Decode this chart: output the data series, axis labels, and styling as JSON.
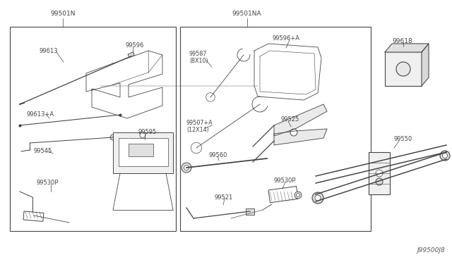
{
  "bg_color": "#ffffff",
  "line_color": "#444444",
  "fig_width": 6.4,
  "fig_height": 3.72,
  "dpi": 100,
  "watermark": "J99500J8",
  "box1_label": "99501N",
  "box2_label": "99501NA",
  "box3_label": "99618",
  "part_99550": "99550"
}
